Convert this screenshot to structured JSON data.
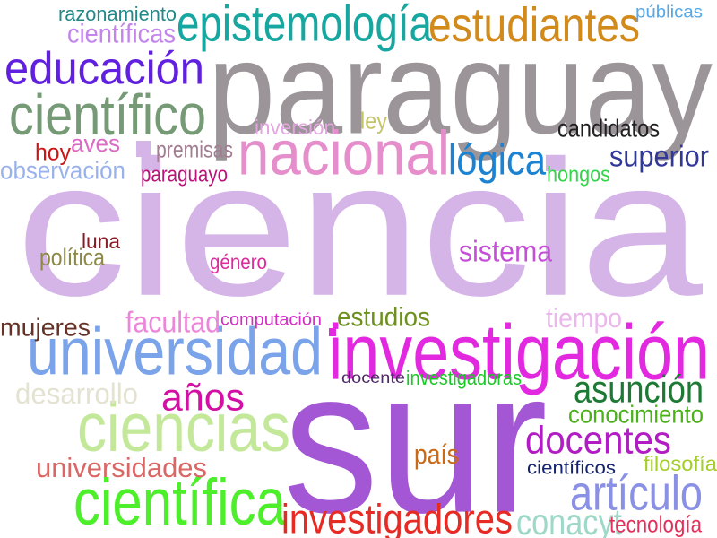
{
  "words": [
    {
      "text": "ciencia",
      "color": "#d5b4e8"
    },
    {
      "text": "sur",
      "color": "#a357d4"
    },
    {
      "text": "paraguay",
      "color": "#9b9498"
    },
    {
      "text": "investigación",
      "color": "#e229e0"
    },
    {
      "text": "nacional",
      "color": "#e58ecb"
    },
    {
      "text": "universidad",
      "color": "#7aa3ea"
    },
    {
      "text": "científica",
      "color": "#4cef2a"
    },
    {
      "text": "ciencias",
      "color": "#c4e89a"
    },
    {
      "text": "científico",
      "color": "#769a76"
    },
    {
      "text": "epistemología",
      "color": "#16a7a0"
    },
    {
      "text": "estudiantes",
      "color": "#d28a1a"
    },
    {
      "text": "educación",
      "color": "#6120e0"
    },
    {
      "text": "artículo",
      "color": "#8a90e4"
    },
    {
      "text": "investigadores",
      "color": "#e62a24"
    },
    {
      "text": "docentes",
      "color": "#b21cc4"
    },
    {
      "text": "asunción",
      "color": "#1d7a34"
    },
    {
      "text": "lógica",
      "color": "#1c82d2"
    },
    {
      "text": "años",
      "color": "#d211a4"
    },
    {
      "text": "conacyt",
      "color": "#9ed9c8"
    },
    {
      "text": "sistema",
      "color": "#c54fd6"
    },
    {
      "text": "superior",
      "color": "#323898"
    },
    {
      "text": "facultad",
      "color": "#ec86da"
    },
    {
      "text": "universidades",
      "color": "#db6666"
    },
    {
      "text": "desarrollo",
      "color": "#e4e2d0"
    },
    {
      "text": "mujeres",
      "color": "#673226"
    },
    {
      "text": "tiempo",
      "color": "#eab8ec"
    },
    {
      "text": "conocimiento",
      "color": "#4bb01a"
    },
    {
      "text": "estudios",
      "color": "#6e901e"
    },
    {
      "text": "país",
      "color": "#c86a18"
    },
    {
      "text": "aves",
      "color": "#da6ac4"
    },
    {
      "text": "candidatos",
      "color": "#202020"
    },
    {
      "text": "tecnología",
      "color": "#e2325c"
    },
    {
      "text": "observación",
      "color": "#9ab2ec"
    },
    {
      "text": "razonamiento",
      "color": "#238888"
    },
    {
      "text": "científicas",
      "color": "#c385ec"
    },
    {
      "text": "política",
      "color": "#8c8846"
    },
    {
      "text": "filosofía",
      "color": "#a4ce2a"
    },
    {
      "text": "inversión",
      "color": "#e4a6e0"
    },
    {
      "text": "ley",
      "color": "#c5c466"
    },
    {
      "text": "hoy",
      "color": "#cc1616"
    },
    {
      "text": "premisas",
      "color": "#a37e92"
    },
    {
      "text": "hongos",
      "color": "#36d44a"
    },
    {
      "text": "paraguayo",
      "color": "#b8147c"
    },
    {
      "text": "luna",
      "color": "#8a1a24"
    },
    {
      "text": "género",
      "color": "#dd2a9c"
    },
    {
      "text": "computación",
      "color": "#d42ec6"
    },
    {
      "text": "docente",
      "color": "#4e2a66"
    },
    {
      "text": "investigadoras",
      "color": "#1cc828"
    },
    {
      "text": "científicos",
      "color": "#162470"
    },
    {
      "text": "públicas",
      "color": "#56a8e6"
    }
  ]
}
